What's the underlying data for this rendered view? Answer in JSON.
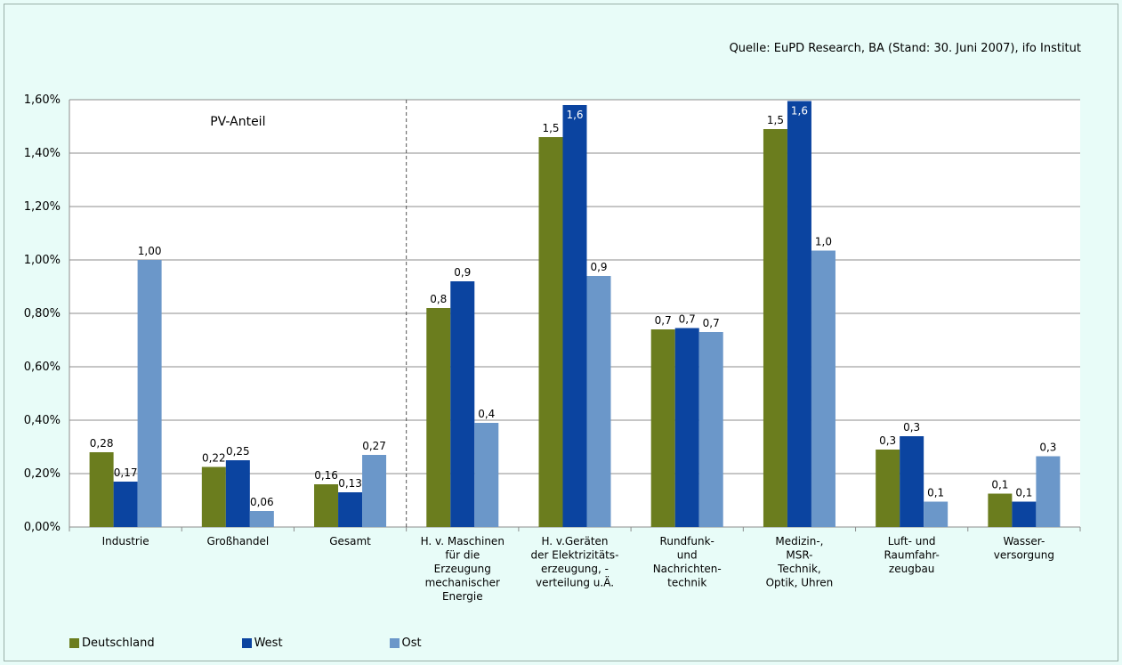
{
  "source": "Quelle: EuPD Research, BA (Stand: 30. Juni 2007), ifo Institut",
  "annotation": "PV-Anteil",
  "colors": {
    "background": "#e8fcf8",
    "Deutschland": "#6b7d1e",
    "West": "#0b44a0",
    "Ost": "#6b97c9"
  },
  "chart_data": {
    "type": "bar",
    "categories": [
      [
        "Industrie"
      ],
      [
        "Großhandel"
      ],
      [
        "Gesamt"
      ],
      [
        "H. v. Maschinen",
        "für die",
        "Erzeugung",
        "mechanischer",
        "Energie"
      ],
      [
        "H. v.Geräten",
        "der Elektrizitäts-",
        "erzeugung, -",
        "verteilung u.Ä."
      ],
      [
        "Rundfunk-",
        "und",
        "Nachrichten-",
        "technik"
      ],
      [
        "Medizin-,",
        "MSR-",
        "Technik,",
        "Optik, Uhren"
      ],
      [
        "Luft- und",
        "Raumfahr-",
        "zeugbau"
      ],
      [
        "Wasser-",
        "versorgung"
      ]
    ],
    "series": [
      {
        "name": "Deutschland",
        "values": [
          0.28,
          0.225,
          0.16,
          0.82,
          1.46,
          0.74,
          1.49,
          0.29,
          0.125
        ],
        "labels": [
          "0,28",
          "0,22",
          "0,16",
          "0,8",
          "1,5",
          "0,7",
          "1,5",
          "0,3",
          "0,1"
        ]
      },
      {
        "name": "West",
        "values": [
          0.17,
          0.25,
          0.13,
          0.92,
          1.58,
          0.745,
          1.595,
          0.34,
          0.095
        ],
        "labels": [
          "0,17",
          "0,25",
          "0,13",
          "0,9",
          "1,6",
          "0,7",
          "1,6",
          "0,3",
          "0,1"
        ]
      },
      {
        "name": "Ost",
        "values": [
          1.0,
          0.06,
          0.27,
          0.39,
          0.94,
          0.73,
          1.035,
          0.095,
          0.265
        ],
        "labels": [
          "1,00",
          "0,06",
          "0,27",
          "0,4",
          "0,9",
          "0,7",
          "1,0",
          "0,1",
          "0,3"
        ]
      }
    ],
    "yticks": [
      "0,00%",
      "0,20%",
      "0,40%",
      "0,60%",
      "0,80%",
      "1,00%",
      "1,20%",
      "1,40%",
      "1,60%"
    ],
    "ylim": [
      0,
      1.6
    ],
    "grid": true,
    "legend": "bottom-left"
  }
}
